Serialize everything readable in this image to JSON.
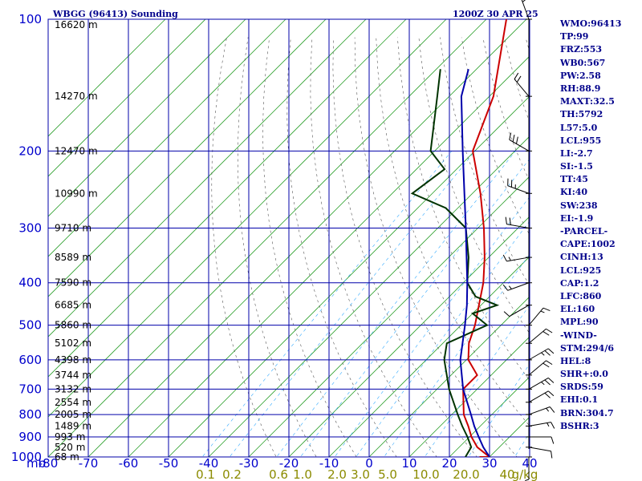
{
  "header": {
    "title": "WBGG (96413) Sounding",
    "time": "1200Z 30 APR 25"
  },
  "chart_data": {
    "type": "line",
    "subtype": "skew-t log-p sounding",
    "ylabel": "mb",
    "pressure_levels": [
      100,
      200,
      300,
      400,
      500,
      600,
      700,
      800,
      900,
      1000
    ],
    "temperature_ticks": [
      -80,
      -70,
      -60,
      -50,
      -40,
      -30,
      -20,
      -10,
      0,
      10,
      20,
      30,
      40
    ],
    "height_labels": [
      {
        "p": 103,
        "text": "16620 m"
      },
      {
        "p": 150,
        "text": "14270 m"
      },
      {
        "p": 200,
        "text": "12470 m"
      },
      {
        "p": 250,
        "text": "10990 m"
      },
      {
        "p": 300,
        "text": "9710 m"
      },
      {
        "p": 350,
        "text": "8589 m"
      },
      {
        "p": 400,
        "text": "7590 m"
      },
      {
        "p": 450,
        "text": "6685 m"
      },
      {
        "p": 500,
        "text": "5860 m"
      },
      {
        "p": 550,
        "text": "5102 m"
      },
      {
        "p": 600,
        "text": "4398 m"
      },
      {
        "p": 650,
        "text": "3744 m"
      },
      {
        "p": 700,
        "text": "3132 m"
      },
      {
        "p": 750,
        "text": "2554 m"
      },
      {
        "p": 800,
        "text": "2005 m"
      },
      {
        "p": 850,
        "text": "1489 m"
      },
      {
        "p": 900,
        "text": "993 m"
      },
      {
        "p": 950,
        "text": "520 m"
      },
      {
        "p": 1000,
        "text": "68 m"
      }
    ],
    "mixing_ratio_labels": [
      "0.1",
      "0.2",
      "0.6",
      "1.0",
      "2.0",
      "3.0",
      "5.0",
      "10.0",
      "20.0",
      "40",
      "g/kg"
    ],
    "x_range": [
      -80,
      40
    ],
    "y_range": [
      100,
      1000
    ],
    "log_y": true,
    "grid": true,
    "series": [
      {
        "color": "#cc0000",
        "points": [
          [
            1000,
            27.5
          ],
          [
            1000,
            30
          ],
          [
            950,
            24.5
          ],
          [
            900,
            20.5
          ],
          [
            850,
            17
          ],
          [
            800,
            13
          ],
          [
            700,
            6.5
          ],
          [
            650,
            6.5
          ],
          [
            600,
            0.5
          ],
          [
            550,
            -3.5
          ],
          [
            500,
            -6.5
          ],
          [
            450,
            -10.5
          ],
          [
            400,
            -15
          ],
          [
            350,
            -21
          ],
          [
            300,
            -28.5
          ],
          [
            250,
            -38
          ],
          [
            200,
            -50.5
          ],
          [
            150,
            -59
          ],
          [
            100,
            -75
          ]
        ]
      },
      {
        "color": "#003300",
        "points": [
          [
            1000,
            24
          ],
          [
            950,
            23
          ],
          [
            900,
            19.5
          ],
          [
            850,
            15.5
          ],
          [
            800,
            11.5
          ],
          [
            700,
            3
          ],
          [
            600,
            -5.5
          ],
          [
            550,
            -9
          ],
          [
            500,
            -3.5
          ],
          [
            470,
            -10
          ],
          [
            450,
            -6
          ],
          [
            430,
            -13.5
          ],
          [
            400,
            -19
          ],
          [
            350,
            -25
          ],
          [
            300,
            -33
          ],
          [
            270,
            -43
          ],
          [
            250,
            -55
          ],
          [
            220,
            -53
          ],
          [
            200,
            -61
          ],
          [
            150,
            -73
          ],
          [
            130,
            -79
          ]
        ]
      },
      {
        "color": "#0000aa",
        "points": [
          [
            1000,
            30
          ],
          [
            950,
            26
          ],
          [
            900,
            22.3
          ],
          [
            850,
            18.5
          ],
          [
            800,
            14.8
          ],
          [
            700,
            6.5
          ],
          [
            600,
            -1.5
          ],
          [
            500,
            -9
          ],
          [
            450,
            -13.5
          ],
          [
            400,
            -19
          ],
          [
            350,
            -25.5
          ],
          [
            300,
            -33
          ],
          [
            250,
            -42
          ],
          [
            200,
            -53
          ],
          [
            150,
            -67
          ],
          [
            130,
            -72
          ]
        ]
      }
    ],
    "wind_barbs": [
      {
        "p": 1000,
        "dir": 180,
        "spd": 5
      },
      {
        "p": 950,
        "dir": 100,
        "spd": 10
      },
      {
        "p": 900,
        "dir": 90,
        "spd": 10
      },
      {
        "p": 850,
        "dir": 80,
        "spd": 15
      },
      {
        "p": 800,
        "dir": 70,
        "spd": 15
      },
      {
        "p": 750,
        "dir": 60,
        "spd": 20
      },
      {
        "p": 700,
        "dir": 60,
        "spd": 25
      },
      {
        "p": 650,
        "dir": 50,
        "spd": 20
      },
      {
        "p": 600,
        "dir": 60,
        "spd": 25
      },
      {
        "p": 550,
        "dir": 50,
        "spd": 20
      },
      {
        "p": 500,
        "dir": 40,
        "spd": 15
      },
      {
        "p": 450,
        "dir": 240,
        "spd": 10
      },
      {
        "p": 400,
        "dir": 250,
        "spd": 15
      },
      {
        "p": 350,
        "dir": 260,
        "spd": 15
      },
      {
        "p": 300,
        "dir": 280,
        "spd": 20
      },
      {
        "p": 250,
        "dir": 290,
        "spd": 25
      },
      {
        "p": 200,
        "dir": 300,
        "spd": 30
      },
      {
        "p": 150,
        "dir": 320,
        "spd": 20
      },
      {
        "p": 100,
        "dir": 340,
        "spd": 15
      }
    ]
  },
  "stats": [
    "WMO:96413",
    "TP:99",
    "FRZ:553",
    "WB0:567",
    "PW:2.58",
    "RH:88.9",
    "MAXT:32.5",
    "TH:5792",
    "L57:5.0",
    "LCL:955",
    "LI:-2.7",
    "SI:-1.5",
    "TT:45",
    "KI:40",
    "SW:238",
    "EI:-1.9",
    "-PARCEL-",
    "CAPE:1002",
    "CINH:13",
    "LCL:925",
    "CAP:1.2",
    "LFC:860",
    "EL:160",
    "MPL:90",
    "-WIND-",
    "STM:294/6",
    "HEL:8",
    "SHR+:0.0",
    "SRDS:59",
    "EHI:0.1",
    "BRN:304.7",
    "BSHR:3"
  ]
}
